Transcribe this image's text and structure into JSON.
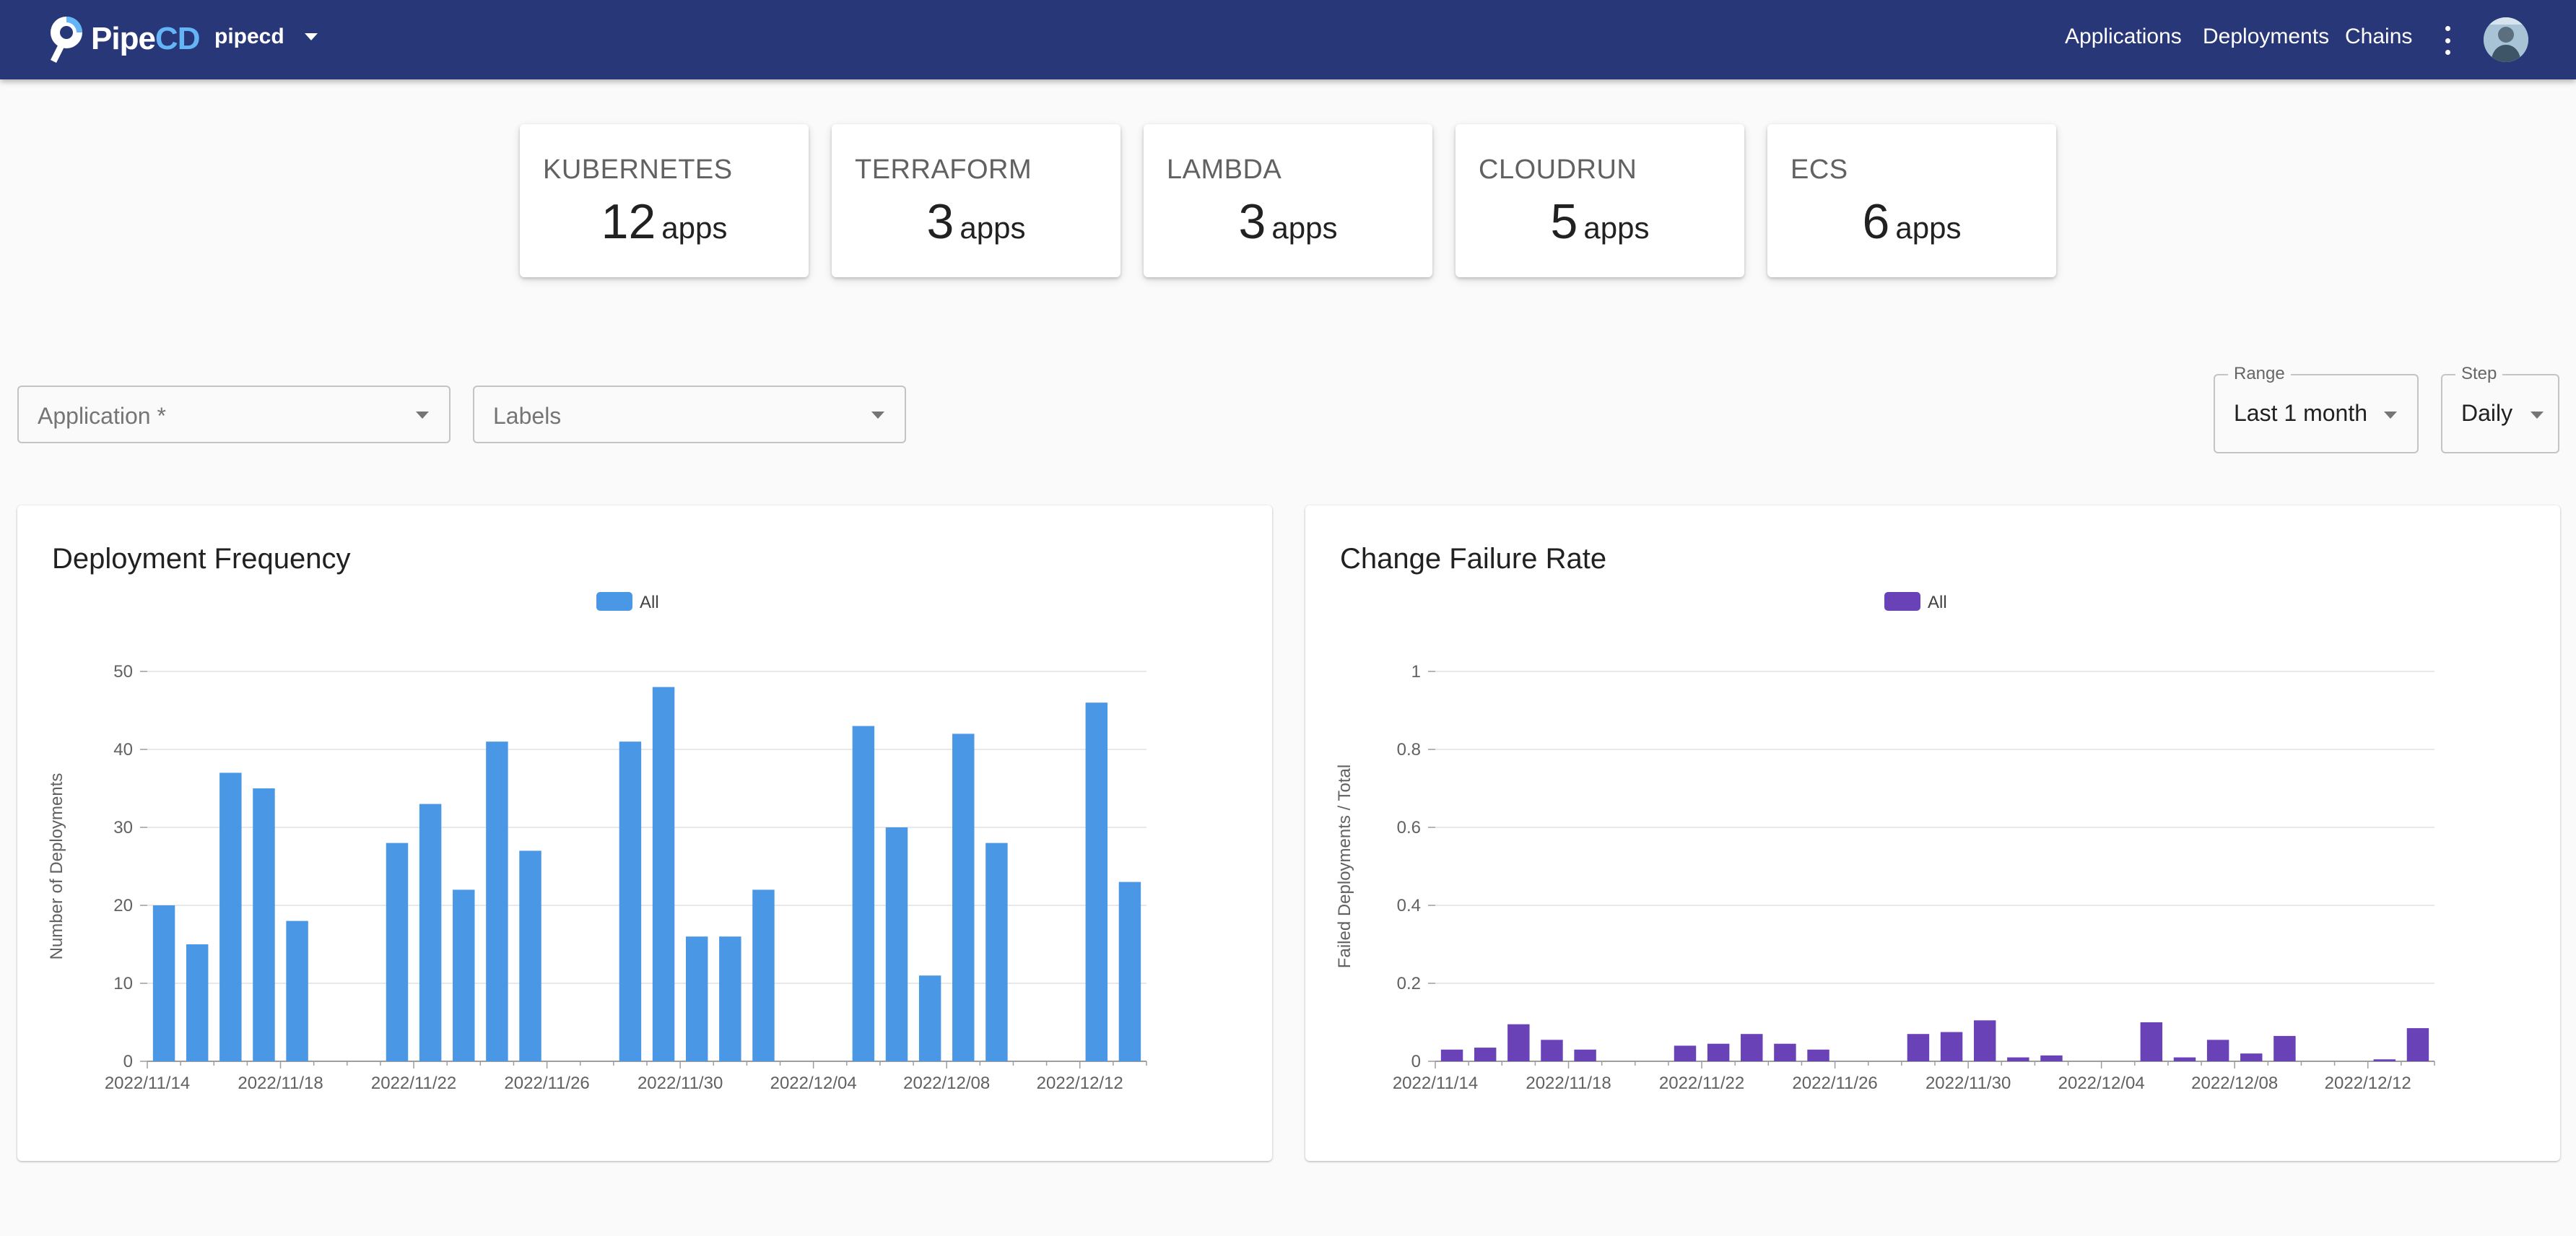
{
  "header": {
    "logo_text_a": "Pipe",
    "logo_text_b": "CD",
    "project": "pipecd",
    "nav": [
      "Applications",
      "Deployments",
      "Chains"
    ]
  },
  "summary": [
    {
      "kind": "KUBERNETES",
      "count": "12",
      "unit": "apps"
    },
    {
      "kind": "TERRAFORM",
      "count": "3",
      "unit": "apps"
    },
    {
      "kind": "LAMBDA",
      "count": "3",
      "unit": "apps"
    },
    {
      "kind": "CLOUDRUN",
      "count": "5",
      "unit": "apps"
    },
    {
      "kind": "ECS",
      "count": "6",
      "unit": "apps"
    }
  ],
  "filters": {
    "application_placeholder": "Application *",
    "labels_placeholder": "Labels",
    "range_label": "Range",
    "range_value": "Last 1 month",
    "step_label": "Step",
    "step_value": "Daily"
  },
  "colors": {
    "header": "#283778",
    "deployment_bar": "#4a97e6",
    "failure_bar": "#6a42b8"
  },
  "chart_data": [
    {
      "type": "bar",
      "title": "Deployment Frequency",
      "ylabel": "Number of Deployments",
      "xlabel": "",
      "ylim": [
        0,
        50
      ],
      "yticks": [
        0,
        10,
        20,
        30,
        40,
        50
      ],
      "xtick_labels": [
        "2022/11/14",
        "2022/11/18",
        "2022/11/22",
        "2022/11/26",
        "2022/11/30",
        "2022/12/04",
        "2022/12/08",
        "2022/12/12"
      ],
      "legend": "top-center",
      "grid": true,
      "series": [
        {
          "name": "All",
          "color": "#4a97e6",
          "x": [
            "2022/11/14",
            "2022/11/15",
            "2022/11/16",
            "2022/11/17",
            "2022/11/18",
            "2022/11/19",
            "2022/11/20",
            "2022/11/21",
            "2022/11/22",
            "2022/11/23",
            "2022/11/24",
            "2022/11/25",
            "2022/11/26",
            "2022/11/27",
            "2022/11/28",
            "2022/11/29",
            "2022/11/30",
            "2022/12/01",
            "2022/12/02",
            "2022/12/03",
            "2022/12/04",
            "2022/12/05",
            "2022/12/06",
            "2022/12/07",
            "2022/12/08",
            "2022/12/09",
            "2022/12/10",
            "2022/12/11",
            "2022/12/12",
            "2022/12/13"
          ],
          "values": [
            20,
            15,
            37,
            35,
            18,
            0,
            0,
            28,
            33,
            22,
            41,
            27,
            0,
            0,
            41,
            48,
            16,
            16,
            22,
            0,
            0,
            43,
            30,
            11,
            42,
            28,
            0,
            0,
            46,
            23
          ]
        }
      ]
    },
    {
      "type": "bar",
      "title": "Change Failure Rate",
      "ylabel": "Failed Deployments / Total",
      "xlabel": "",
      "ylim": [
        0,
        1
      ],
      "yticks": [
        0,
        0.2,
        0.4,
        0.6,
        0.8,
        1
      ],
      "xtick_labels": [
        "2022/11/14",
        "2022/11/18",
        "2022/11/22",
        "2022/11/26",
        "2022/11/30",
        "2022/12/04",
        "2022/12/08",
        "2022/12/12"
      ],
      "legend": "top-center",
      "grid": true,
      "series": [
        {
          "name": "All",
          "color": "#6a42b8",
          "x": [
            "2022/11/14",
            "2022/11/15",
            "2022/11/16",
            "2022/11/17",
            "2022/11/18",
            "2022/11/19",
            "2022/11/20",
            "2022/11/21",
            "2022/11/22",
            "2022/11/23",
            "2022/11/24",
            "2022/11/25",
            "2022/11/26",
            "2022/11/27",
            "2022/11/28",
            "2022/11/29",
            "2022/11/30",
            "2022/12/01",
            "2022/12/02",
            "2022/12/03",
            "2022/12/04",
            "2022/12/05",
            "2022/12/06",
            "2022/12/07",
            "2022/12/08",
            "2022/12/09",
            "2022/12/10",
            "2022/12/11",
            "2022/12/12",
            "2022/12/13"
          ],
          "values": [
            0.03,
            0.035,
            0.095,
            0.055,
            0.03,
            0,
            0,
            0.04,
            0.045,
            0.07,
            0.045,
            0.03,
            0,
            0,
            0.07,
            0.075,
            0.105,
            0.01,
            0.015,
            0,
            0,
            0.1,
            0.01,
            0.055,
            0.02,
            0.065,
            0,
            0,
            0.005,
            0.085
          ]
        }
      ]
    }
  ]
}
